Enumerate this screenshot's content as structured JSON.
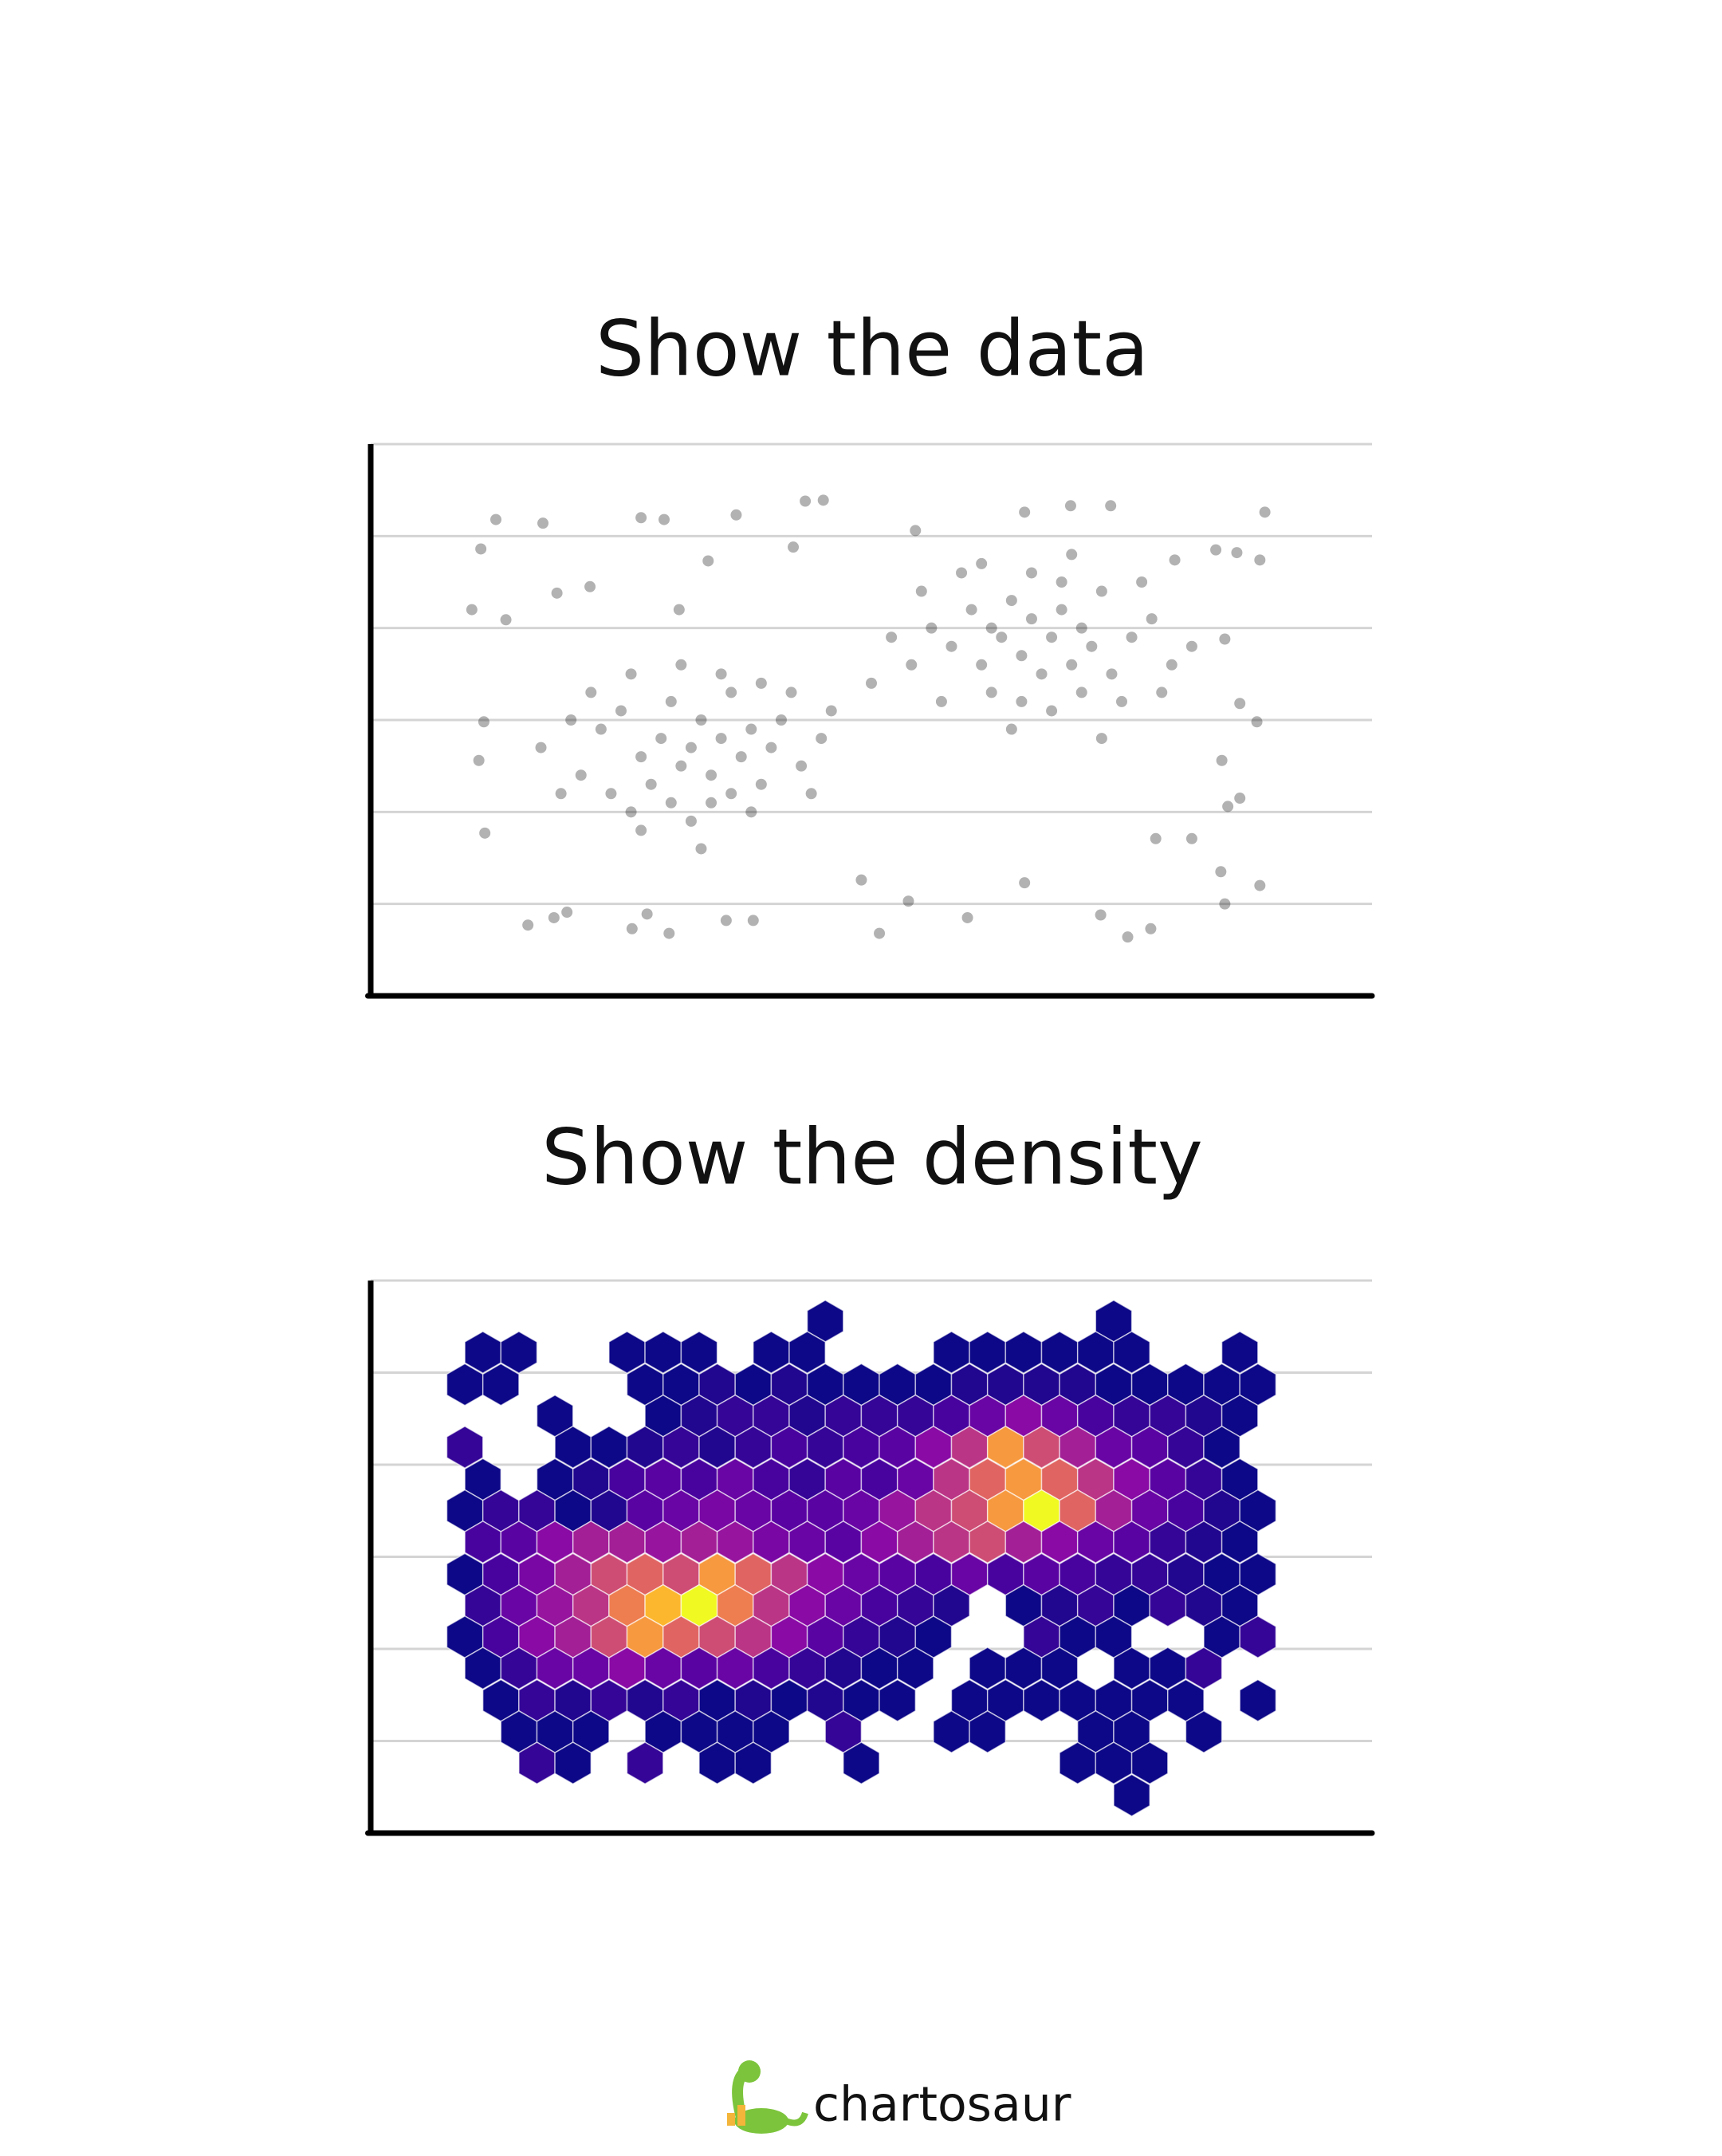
{
  "chart_data": [
    {
      "type": "scatter",
      "title": "Show the data",
      "color": "#000000",
      "alpha": 0.3,
      "grid": true,
      "xlim": [
        0,
        10
      ],
      "ylim": [
        0,
        6
      ],
      "yticks": [
        1,
        2,
        3,
        4,
        5,
        6
      ],
      "x": [
        1.25,
        1.72,
        1.1,
        2.7,
        2.93,
        4.34,
        4.52,
        3.65,
        5.44,
        6.53,
        6.99,
        7.39,
        8.93,
        8.44,
        8.65,
        8.88,
        8.03,
        1.01,
        1.35,
        1.86,
        2.19,
        3.08,
        3.37,
        4.22,
        8.53,
        8.68,
        8.85,
        8.5,
        8.68,
        8.56,
        8.2,
        7.84,
        8.49,
        8.88,
        8.53,
        7.79,
        7.56,
        7.29,
        6.53,
        5.96,
        5.37,
        5.08,
        4.9,
        1.57,
        1.83,
        1.96,
        2.61,
        2.76,
        2.98,
        3.55,
        3.82,
        1.14,
        1.13,
        1.08,
        2.3,
        2.5,
        2.7,
        2.9,
        3.0,
        3.1,
        3.2,
        3.3,
        3.4,
        3.5,
        3.6,
        3.7,
        3.8,
        3.9,
        4.0,
        4.1,
        4.3,
        4.5,
        2.1,
        2.4,
        2.6,
        2.8,
        3.0,
        3.2,
        3.4,
        3.6,
        3.8,
        2.2,
        2.6,
        3.1,
        3.5,
        3.9,
        4.2,
        4.4,
        1.7,
        1.9,
        2.0,
        4.6,
        3.3,
        2.7,
        5.6,
        5.8,
        6.0,
        6.1,
        6.2,
        6.3,
        6.4,
        6.5,
        6.6,
        6.7,
        6.8,
        6.9,
        7.0,
        7.1,
        7.2,
        7.3,
        7.4,
        7.6,
        7.8,
        8.0,
        5.4,
        5.5,
        5.9,
        6.2,
        6.5,
        6.8,
        7.1,
        7.5,
        7.7,
        6.1,
        6.6,
        7.0,
        5.2,
        5.7,
        7.9,
        8.2,
        6.4,
        7.3,
        5.0,
        6.9
      ],
      "y": [
        5.18,
        5.14,
        4.86,
        5.2,
        5.18,
        5.38,
        5.39,
        5.23,
        5.06,
        5.26,
        5.33,
        5.33,
        5.26,
        4.85,
        4.82,
        4.74,
        4.74,
        4.2,
        4.09,
        4.38,
        4.45,
        4.2,
        4.73,
        4.88,
        3.88,
        3.18,
        2.98,
        2.56,
        2.15,
        2.06,
        1.71,
        1.71,
        1.35,
        1.2,
        1.0,
        0.73,
        0.64,
        0.88,
        1.23,
        0.85,
        1.03,
        0.68,
        1.26,
        0.77,
        0.85,
        0.91,
        0.73,
        0.89,
        0.68,
        0.82,
        0.82,
        1.77,
        2.98,
        2.56,
        2.9,
        3.1,
        2.6,
        2.8,
        3.2,
        2.5,
        2.7,
        3.0,
        2.4,
        2.8,
        3.3,
        2.6,
        2.9,
        2.3,
        2.7,
        3.0,
        2.5,
        2.8,
        2.4,
        2.2,
        2.0,
        2.3,
        2.1,
        1.9,
        2.1,
        2.2,
        2.0,
        3.3,
        3.5,
        3.6,
        3.5,
        3.4,
        3.3,
        2.2,
        2.7,
        2.2,
        3.0,
        3.1,
        1.6,
        1.8,
        4.0,
        3.8,
        4.2,
        3.6,
        4.0,
        3.9,
        4.3,
        3.7,
        4.1,
        3.5,
        3.9,
        4.2,
        3.6,
        4.0,
        3.8,
        4.4,
        3.5,
        3.9,
        4.1,
        3.6,
        3.6,
        4.4,
        4.6,
        3.3,
        3.2,
        3.1,
        3.3,
        3.2,
        4.5,
        4.7,
        4.6,
        4.8,
        3.9,
        3.2,
        3.3,
        3.8,
        2.9,
        2.8,
        3.4,
        4.5
      ]
    },
    {
      "type": "hexbin",
      "title": "Show the density",
      "colormap": "plasma",
      "clim": [
        1,
        26
      ],
      "grid": true,
      "xlim": [
        0,
        10
      ],
      "ylim": [
        0,
        6
      ],
      "yticks": [
        1,
        2,
        3,
        4,
        5,
        6
      ],
      "xbins": [
        0.94,
        1.3,
        1.66,
        2.02,
        2.38,
        2.74,
        3.1,
        3.46,
        3.82,
        4.18,
        4.54,
        4.9,
        5.26,
        5.62,
        5.98,
        6.34,
        6.7,
        7.06,
        7.42,
        7.78,
        8.14,
        8.5,
        8.86
      ],
      "ybins": [
        5.56,
        5.22,
        4.87,
        4.53,
        4.19,
        3.84,
        3.5,
        3.16,
        2.81,
        2.47,
        2.13,
        1.79,
        1.44,
        1.1,
        0.76,
        0.41
      ],
      "counts": [
        [
          null,
          null,
          null,
          null,
          null,
          null,
          null,
          null,
          null,
          null,
          1,
          null,
          null,
          null,
          null,
          null,
          null,
          null,
          1,
          null,
          null,
          null,
          null
        ],
        [
          1,
          1,
          null,
          null,
          1,
          1,
          1,
          null,
          1,
          1,
          null,
          null,
          null,
          1,
          1,
          1,
          1,
          1,
          1,
          null,
          null,
          1,
          null
        ],
        [
          1,
          1,
          null,
          null,
          null,
          1,
          1,
          2,
          1,
          2,
          1,
          1,
          1,
          1,
          2,
          2,
          2,
          2,
          1,
          1,
          1,
          1,
          1
        ],
        [
          null,
          null,
          1,
          null,
          null,
          1,
          2,
          3,
          3,
          2,
          3,
          3,
          3,
          4,
          6,
          8,
          6,
          4,
          3,
          3,
          2,
          1,
          null
        ],
        [
          3,
          null,
          null,
          1,
          1,
          2,
          3,
          2,
          3,
          4,
          3,
          4,
          5,
          8,
          12,
          20,
          14,
          10,
          6,
          5,
          3,
          1,
          null
        ],
        [
          1,
          null,
          1,
          2,
          4,
          5,
          4,
          6,
          4,
          3,
          5,
          4,
          6,
          12,
          16,
          20,
          16,
          12,
          8,
          5,
          3,
          1,
          null
        ],
        [
          1,
          3,
          3,
          1,
          2,
          5,
          6,
          7,
          6,
          5,
          5,
          6,
          9,
          12,
          14,
          20,
          26,
          16,
          10,
          6,
          4,
          2,
          1
        ],
        [
          4,
          5,
          8,
          10,
          10,
          9,
          10,
          9,
          7,
          6,
          5,
          8,
          10,
          12,
          14,
          10,
          8,
          6,
          5,
          3,
          2,
          1,
          null
        ],
        [
          1,
          4,
          7,
          10,
          14,
          16,
          14,
          20,
          16,
          12,
          8,
          6,
          5,
          4,
          6,
          4,
          5,
          4,
          3,
          3,
          2,
          1,
          1
        ],
        [
          3,
          6,
          9,
          12,
          18,
          22,
          26,
          18,
          12,
          8,
          6,
          4,
          3,
          2,
          null,
          1,
          2,
          3,
          1,
          3,
          2,
          1,
          null
        ],
        [
          1,
          4,
          8,
          10,
          14,
          20,
          16,
          14,
          12,
          8,
          5,
          3,
          2,
          1,
          null,
          null,
          3,
          1,
          1,
          null,
          null,
          1,
          3
        ],
        [
          1,
          3,
          6,
          6,
          8,
          6,
          5,
          6,
          4,
          3,
          2,
          1,
          1,
          null,
          1,
          1,
          1,
          null,
          1,
          1,
          3,
          null,
          null
        ],
        [
          null,
          1,
          3,
          2,
          3,
          2,
          3,
          1,
          2,
          1,
          2,
          1,
          1,
          null,
          1,
          1,
          1,
          1,
          1,
          1,
          1,
          null,
          1
        ],
        [
          null,
          1,
          1,
          1,
          null,
          1,
          1,
          1,
          1,
          null,
          3,
          null,
          null,
          1,
          1,
          null,
          null,
          1,
          1,
          null,
          1,
          null,
          null
        ],
        [
          null,
          null,
          3,
          1,
          null,
          3,
          null,
          1,
          1,
          null,
          null,
          1,
          null,
          null,
          null,
          null,
          null,
          1,
          1,
          1,
          null,
          null,
          null
        ],
        [
          null,
          null,
          null,
          null,
          null,
          null,
          null,
          null,
          null,
          null,
          null,
          null,
          null,
          null,
          null,
          null,
          null,
          null,
          1,
          null,
          null,
          null,
          null
        ]
      ]
    }
  ],
  "footer": {
    "brand": "chartosaur"
  }
}
